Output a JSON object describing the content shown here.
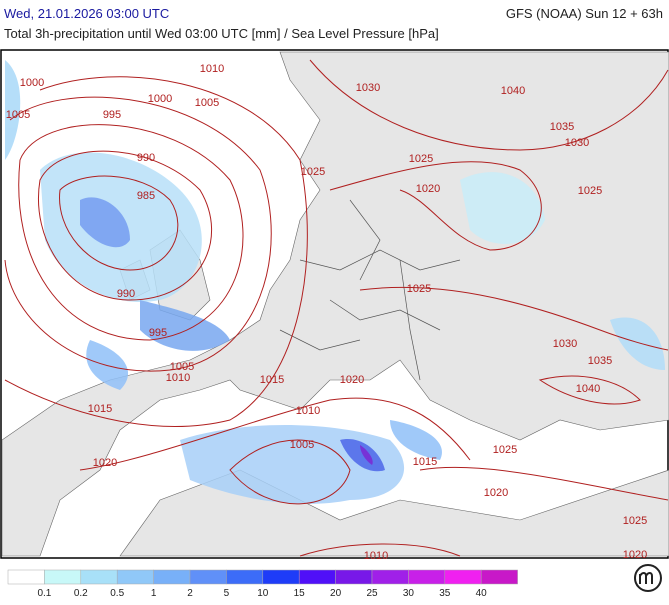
{
  "header": {
    "left": "Wed, 21.01.2026 03:00 UTC",
    "right": "GFS (NOAA) Sun 12 + 63h",
    "subtitle": "Total 3h-precipitation until Wed 03:00 UTC [mm] / Sea Level Pressure [hPa]"
  },
  "isobar_labels": [
    "1000",
    "1005",
    "995",
    "1000",
    "1005",
    "1010",
    "990",
    "985",
    "990",
    "995",
    "1005",
    "1010",
    "1015",
    "1020",
    "1030",
    "1040",
    "1035",
    "1030",
    "1025",
    "1025",
    "1020",
    "1025",
    "1025",
    "1030",
    "1035",
    "1040",
    "1015",
    "1020",
    "1010",
    "1005",
    "1015",
    "1025",
    "1020",
    "1025",
    "1020",
    "1010"
  ],
  "scale": {
    "labels": [
      0.1,
      0.2,
      0.5,
      1,
      2,
      5,
      10,
      15,
      20,
      25,
      30,
      35,
      40
    ],
    "colors": [
      "#ffffff",
      "#c8f8f8",
      "#a8e0f8",
      "#90c8f8",
      "#78b0f8",
      "#6090f8",
      "#3c6cf8",
      "#1e3cf8",
      "#5010f8",
      "#7818e8",
      "#a020e8",
      "#c820e8",
      "#f020f0",
      "#c818c8"
    ]
  }
}
